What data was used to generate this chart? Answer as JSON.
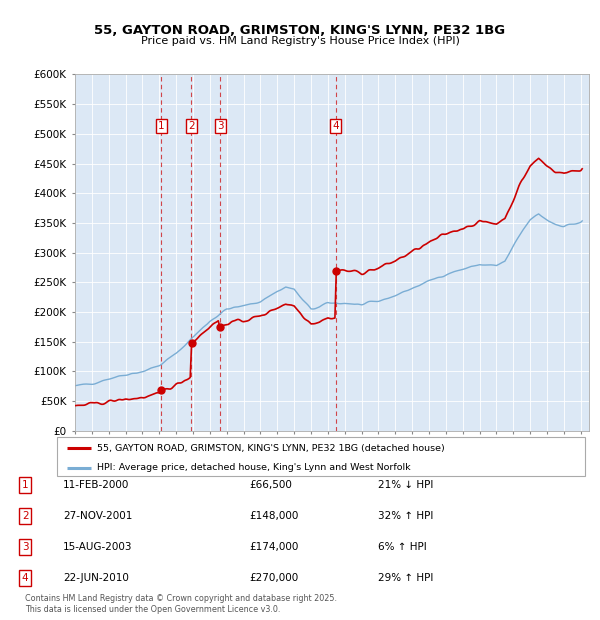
{
  "title": "55, GAYTON ROAD, GRIMSTON, KING'S LYNN, PE32 1BG",
  "subtitle": "Price paid vs. HM Land Registry's House Price Index (HPI)",
  "hpi_label": "HPI: Average price, detached house, King's Lynn and West Norfolk",
  "price_label": "55, GAYTON ROAD, GRIMSTON, KING'S LYNN, PE32 1BG (detached house)",
  "footer1": "Contains HM Land Registry data © Crown copyright and database right 2025.",
  "footer2": "This data is licensed under the Open Government Licence v3.0.",
  "ylim": [
    0,
    600000
  ],
  "yticks": [
    0,
    50000,
    100000,
    150000,
    200000,
    250000,
    300000,
    350000,
    400000,
    450000,
    500000,
    550000,
    600000
  ],
  "ytick_labels": [
    "£0",
    "£50K",
    "£100K",
    "£150K",
    "£200K",
    "£250K",
    "£300K",
    "£350K",
    "£400K",
    "£450K",
    "£500K",
    "£550K",
    "£600K"
  ],
  "price_color": "#cc0000",
  "hpi_color": "#7aadd4",
  "sale_color": "#cc0000",
  "vline_color": "#cc0000",
  "bg_color": "#dce8f5",
  "transactions": [
    {
      "num": 1,
      "date": "11-FEB-2000",
      "price": 66500,
      "pct": "21%",
      "dir": "↓",
      "year": 2000.12
    },
    {
      "num": 2,
      "date": "27-NOV-2001",
      "price": 148000,
      "pct": "32%",
      "dir": "↑",
      "year": 2001.91
    },
    {
      "num": 3,
      "date": "15-AUG-2003",
      "price": 174000,
      "pct": "6%",
      "dir": "↑",
      "year": 2003.62
    },
    {
      "num": 4,
      "date": "22-JUN-2010",
      "price": 270000,
      "pct": "29%",
      "dir": "↑",
      "year": 2010.47
    }
  ],
  "xlim": [
    1995.0,
    2025.5
  ],
  "xticks": [
    1995,
    1996,
    1997,
    1998,
    1999,
    2000,
    2001,
    2002,
    2003,
    2004,
    2005,
    2006,
    2007,
    2008,
    2009,
    2010,
    2011,
    2012,
    2013,
    2014,
    2015,
    2016,
    2017,
    2018,
    2019,
    2020,
    2021,
    2022,
    2023,
    2024,
    2025
  ]
}
